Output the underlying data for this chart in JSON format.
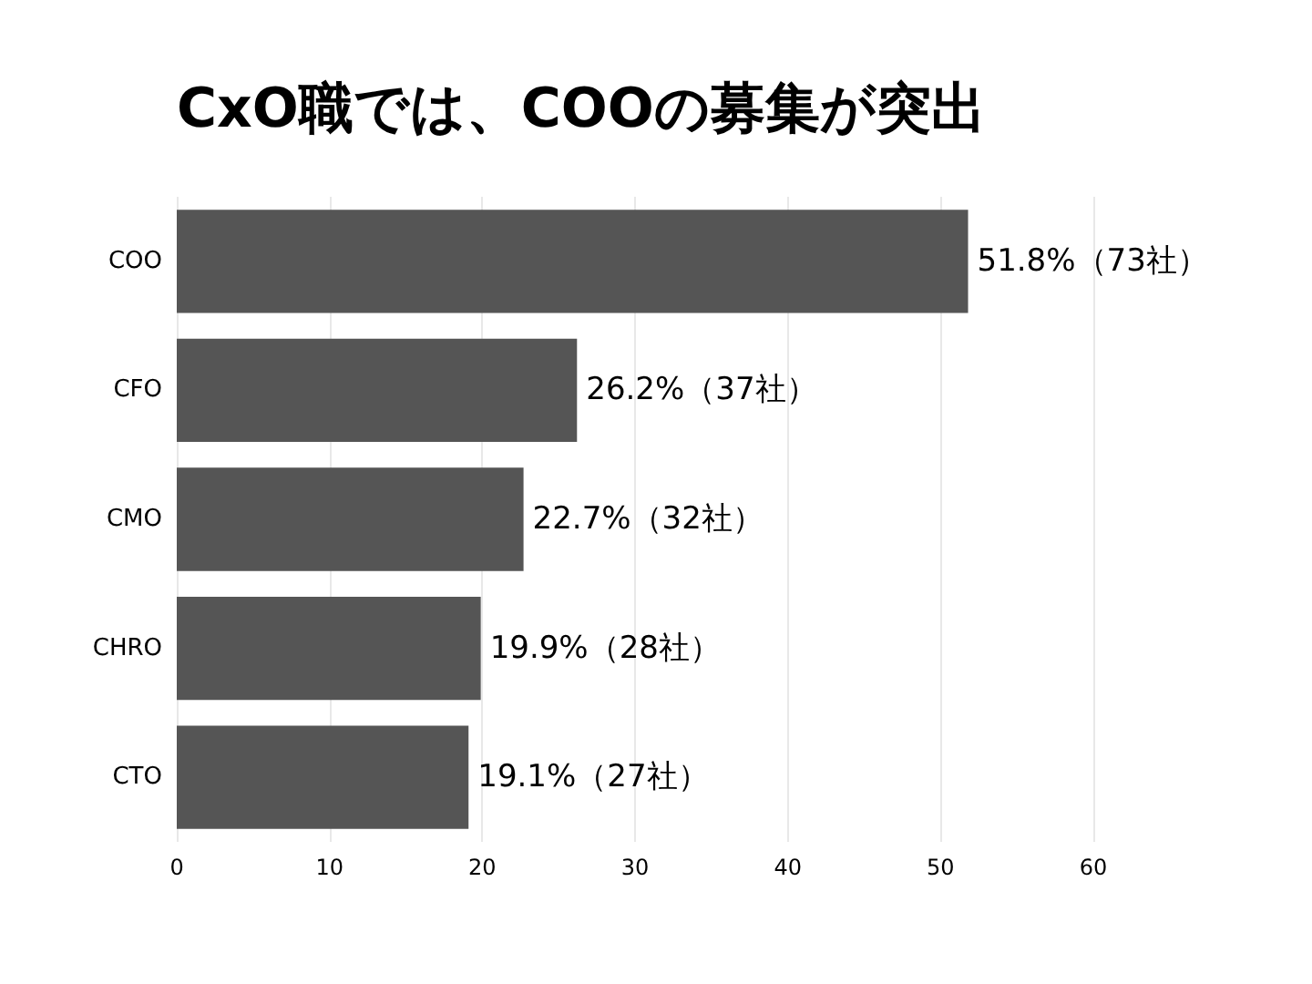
{
  "chart_data": {
    "type": "bar",
    "title": "CxO職では、COOの募集が突出",
    "orientation": "horizontal",
    "categories": [
      "COO",
      "CFO",
      "CMO",
      "CHRO",
      "CTO"
    ],
    "values": [
      51.8,
      26.2,
      22.7,
      19.9,
      19.1
    ],
    "color": "#555555",
    "value_labels": [
      "51.8%（73社）",
      "26.2%（37社）",
      "22.7%（32社）",
      "19.9%（28社）",
      "19.1%（27社）"
    ],
    "xlim": [
      0,
      60
    ],
    "xticks": [
      0,
      10,
      20,
      30,
      40,
      50,
      60
    ],
    "grid": "x"
  }
}
